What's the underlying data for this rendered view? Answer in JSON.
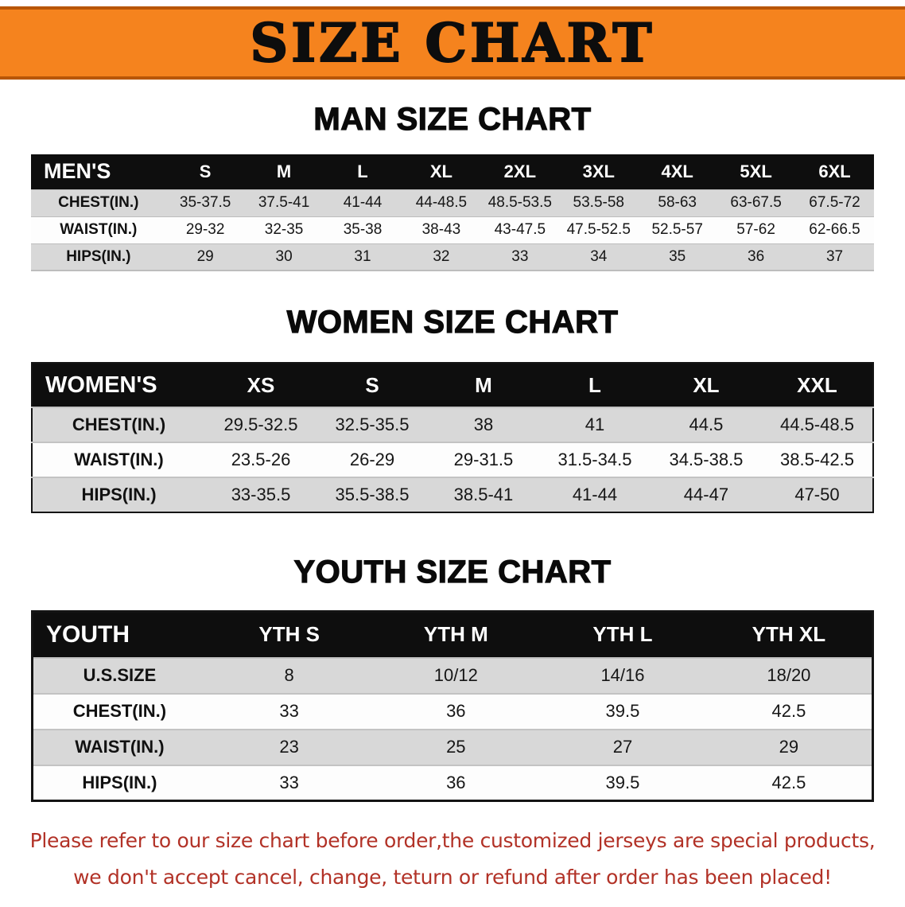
{
  "banner": {
    "title": "SIZE CHART",
    "bg_color": "#F5831E"
  },
  "chart_data": [
    {
      "type": "table",
      "title": "MAN SIZE CHART",
      "header": [
        "MEN'S",
        "S",
        "M",
        "L",
        "XL",
        "2XL",
        "3XL",
        "4XL",
        "5XL",
        "6XL"
      ],
      "rows": [
        [
          "CHEST(IN.)",
          "35-37.5",
          "37.5-41",
          "41-44",
          "44-48.5",
          "48.5-53.5",
          "53.5-58",
          "58-63",
          "63-67.5",
          "67.5-72"
        ],
        [
          "WAIST(IN.)",
          "29-32",
          "32-35",
          "35-38",
          "38-43",
          "43-47.5",
          "47.5-52.5",
          "52.5-57",
          "57-62",
          "62-66.5"
        ],
        [
          "HIPS(IN.)",
          "29",
          "30",
          "31",
          "32",
          "33",
          "34",
          "35",
          "36",
          "37"
        ]
      ]
    },
    {
      "type": "table",
      "title": "WOMEN SIZE CHART",
      "header": [
        "WOMEN'S",
        "XS",
        "S",
        "M",
        "L",
        "XL",
        "XXL"
      ],
      "rows": [
        [
          "CHEST(IN.)",
          "29.5-32.5",
          "32.5-35.5",
          "38",
          "41",
          "44.5",
          "44.5-48.5"
        ],
        [
          "WAIST(IN.)",
          "23.5-26",
          "26-29",
          "29-31.5",
          "31.5-34.5",
          "34.5-38.5",
          "38.5-42.5"
        ],
        [
          "HIPS(IN.)",
          "33-35.5",
          "35.5-38.5",
          "38.5-41",
          "41-44",
          "44-47",
          "47-50"
        ]
      ]
    },
    {
      "type": "table",
      "title": "YOUTH SIZE CHART",
      "header": [
        "YOUTH",
        "YTH S",
        "YTH M",
        "YTH L",
        "YTH XL"
      ],
      "rows": [
        [
          "U.S.SIZE",
          "8",
          "10/12",
          "14/16",
          "18/20"
        ],
        [
          "CHEST(IN.)",
          "33",
          "36",
          "39.5",
          "42.5"
        ],
        [
          "WAIST(IN.)",
          "23",
          "25",
          "27",
          "29"
        ],
        [
          "HIPS(IN.)",
          "33",
          "36",
          "39.5",
          "42.5"
        ]
      ]
    }
  ],
  "disclaimer": {
    "line1": "Please refer to our size chart before order,the customized jerseys are special products,",
    "line2": "we don't accept cancel, change, teturn or refund after order has been placed!",
    "color": "#B23227"
  }
}
